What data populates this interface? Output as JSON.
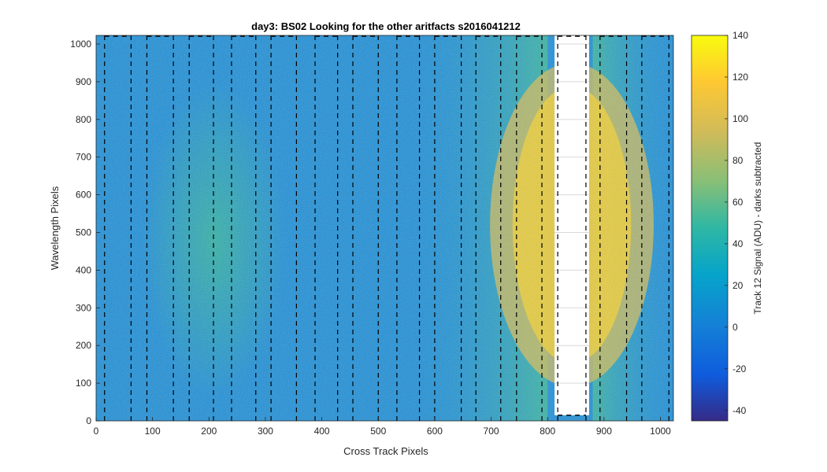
{
  "chart_data": {
    "type": "heatmap",
    "title": "day3: BS02  Looking for the other aritfacts  s2016041212",
    "xlabel": "Cross Track Pixels",
    "ylabel": "Wavelength Pixels",
    "xlim": [
      0,
      1023
    ],
    "ylim": [
      0,
      1023
    ],
    "x_ticks": [
      0,
      100,
      200,
      300,
      400,
      500,
      600,
      700,
      800,
      900,
      1000
    ],
    "y_ticks": [
      0,
      100,
      200,
      300,
      400,
      500,
      600,
      700,
      800,
      900,
      1000
    ],
    "colorbar": {
      "label": "Track 12 Signal (ADU) - darks subtracted",
      "clim": [
        -45,
        140
      ],
      "ticks": [
        -40,
        -20,
        0,
        20,
        40,
        60,
        80,
        100,
        120,
        140
      ],
      "colormap": "parula"
    },
    "track_boundaries_x": [
      15,
      62,
      90,
      137,
      165,
      208,
      240,
      283,
      310,
      355,
      388,
      428,
      455,
      500,
      533,
      573,
      600,
      647,
      673,
      717,
      745,
      790,
      818,
      868,
      893,
      940,
      967,
      1015
    ],
    "saturated_region": {
      "x": [
        818,
        868
      ],
      "y": [
        15,
        1023
      ]
    },
    "colors": {
      "axes_text": "#262626",
      "dashed_lines": "#000000",
      "saturated": "#ffffff"
    }
  }
}
